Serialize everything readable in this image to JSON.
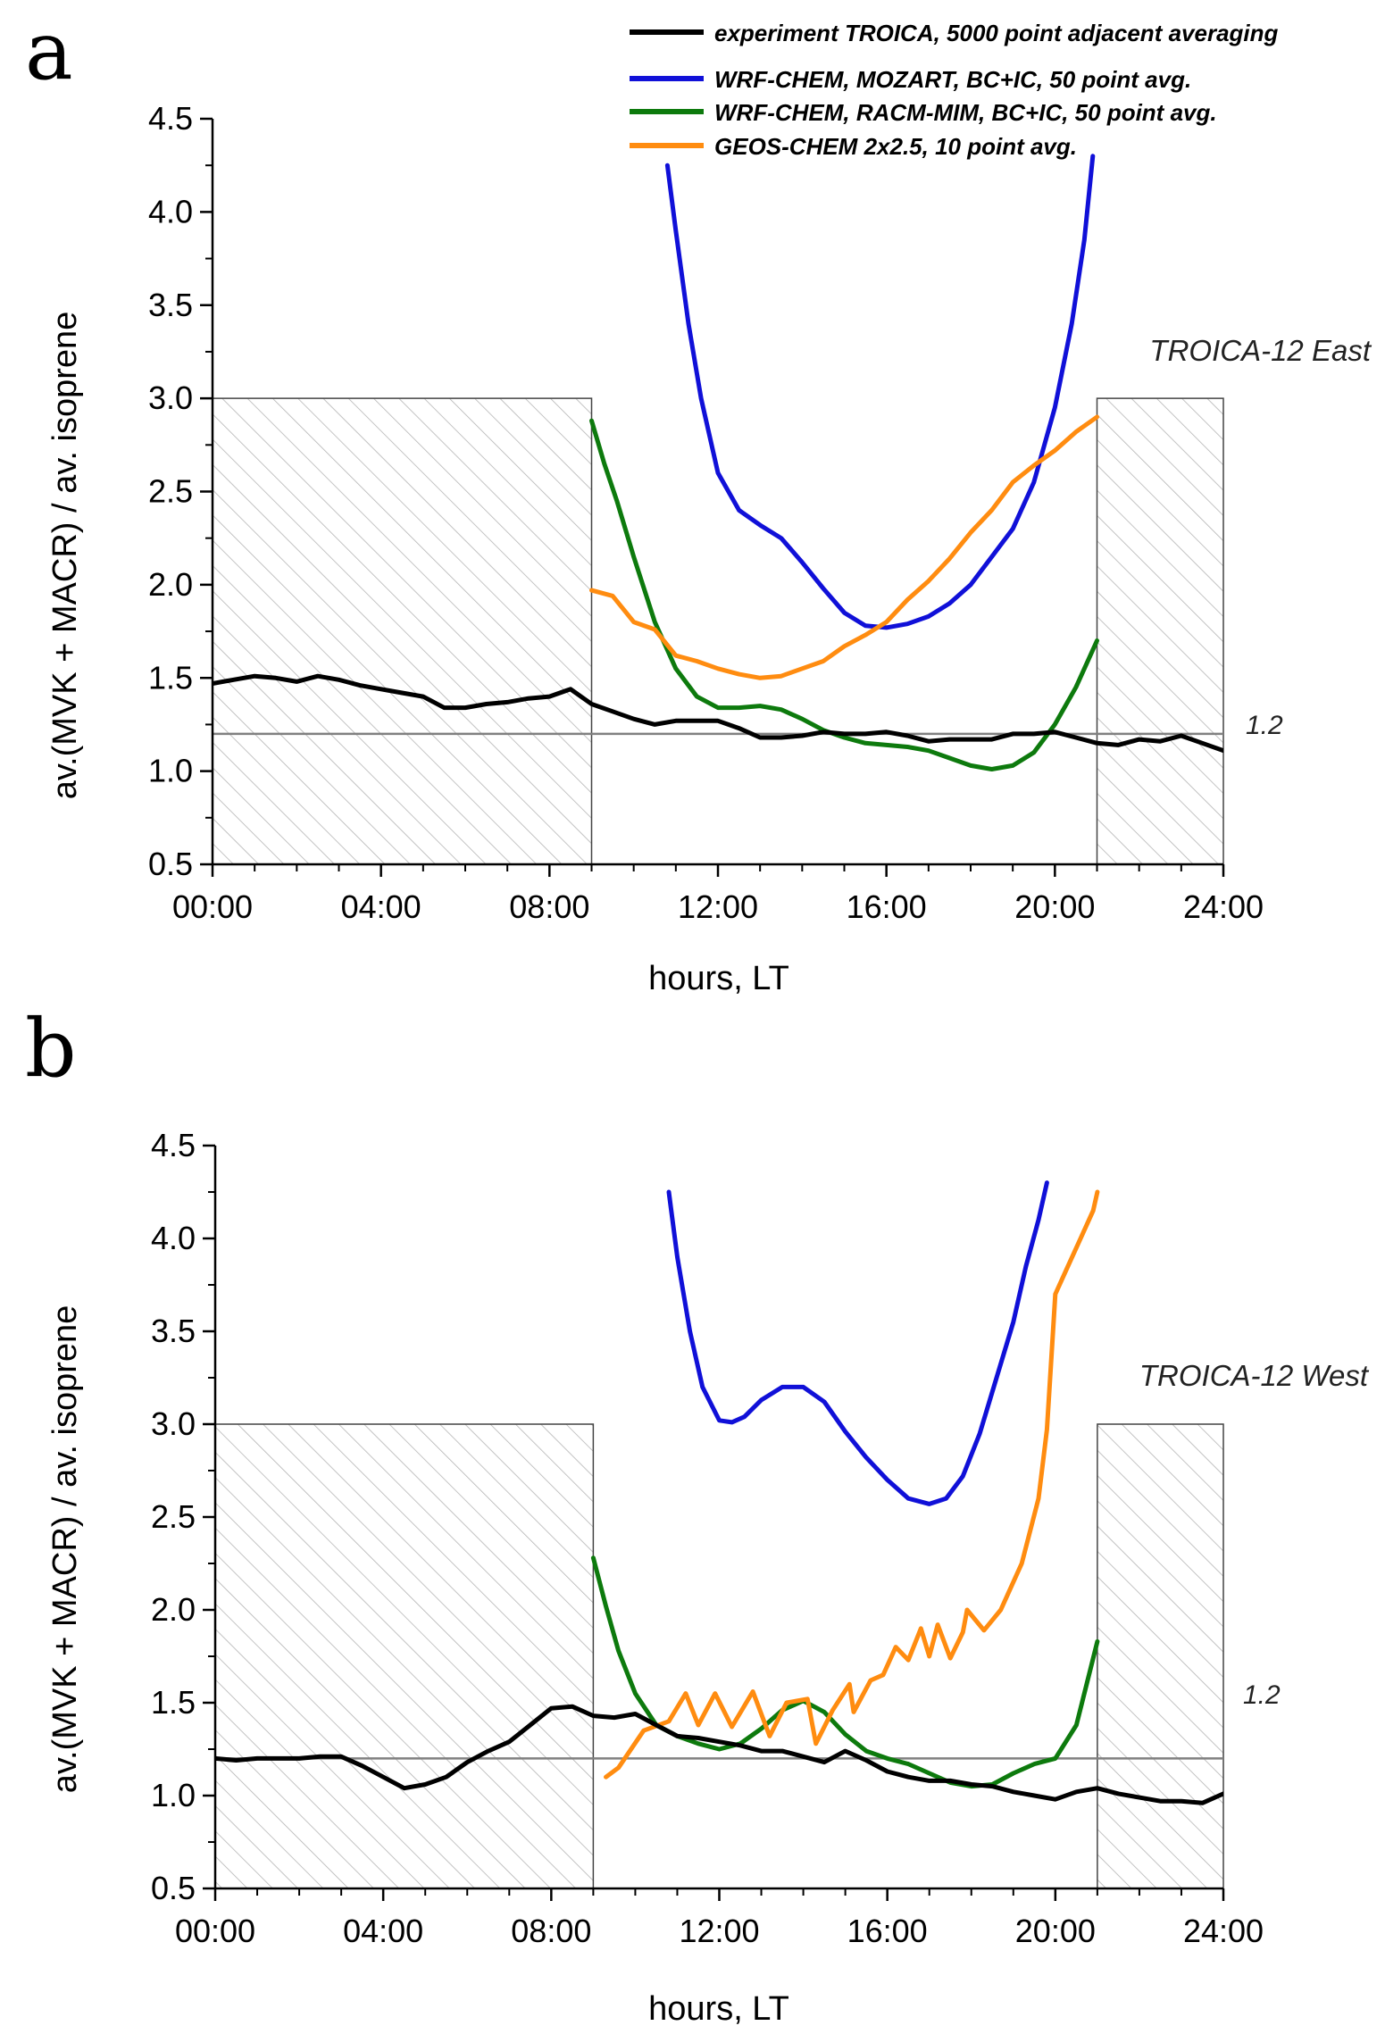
{
  "legend": [
    {
      "label": "experiment TROICA, 5000 point adjacent averaging",
      "color": "#000000"
    },
    {
      "label": "WRF-CHEM, MOZART, BC+IC, 50 point avg.",
      "color": "#1010d8"
    },
    {
      "label": "WRF-CHEM, RACM-MIM, BC+IC, 50 point  avg.",
      "color": "#0d7a0d"
    },
    {
      "label": "GEOS-CHEM 2x2.5, 10 point avg.",
      "color": "#ff8c10"
    }
  ],
  "chart_data": [
    {
      "type": "line",
      "panel_letter": "a",
      "annotation": "TROICA-12 East",
      "xlabel": "hours, LT",
      "ylabel": "av.(MVK + MACR) / av. isoprene",
      "xlim": [
        0,
        24
      ],
      "ylim": [
        0.5,
        4.5
      ],
      "x_ticks": [
        "00:00",
        "04:00",
        "08:00",
        "12:00",
        "16:00",
        "20:00",
        "24:00"
      ],
      "y_ticks": [
        "0.5",
        "1.0",
        "1.5",
        "2.0",
        "2.5",
        "3.0",
        "3.5",
        "4.0",
        "4.5"
      ],
      "reference_line": {
        "y": 1.2,
        "label": "1.2"
      },
      "shaded_regions": [
        {
          "x": [
            0,
            9
          ],
          "y": [
            0.5,
            3.0
          ]
        },
        {
          "x": [
            21,
            24
          ],
          "y": [
            0.5,
            3.0
          ]
        }
      ],
      "series": [
        {
          "name": "experiment TROICA, 5000 point adjacent averaging",
          "color": "#000000",
          "x": [
            0,
            0.5,
            1,
            1.5,
            2,
            2.5,
            3,
            3.5,
            4,
            4.5,
            5,
            5.5,
            6,
            6.5,
            7,
            7.5,
            8,
            8.5,
            9,
            9.5,
            10,
            10.5,
            11,
            11.5,
            12,
            12.5,
            13,
            13.5,
            14,
            14.5,
            15,
            15.5,
            16,
            16.5,
            17,
            17.5,
            18,
            18.5,
            19,
            19.5,
            20,
            20.5,
            21,
            21.5,
            22,
            22.5,
            23,
            23.5,
            24
          ],
          "y": [
            1.47,
            1.49,
            1.51,
            1.5,
            1.48,
            1.51,
            1.49,
            1.46,
            1.44,
            1.42,
            1.4,
            1.34,
            1.34,
            1.36,
            1.37,
            1.39,
            1.4,
            1.44,
            1.36,
            1.32,
            1.28,
            1.25,
            1.27,
            1.27,
            1.27,
            1.23,
            1.18,
            1.18,
            1.19,
            1.21,
            1.2,
            1.2,
            1.21,
            1.19,
            1.16,
            1.17,
            1.17,
            1.17,
            1.2,
            1.2,
            1.21,
            1.18,
            1.15,
            1.14,
            1.17,
            1.16,
            1.19,
            1.15,
            1.11
          ]
        },
        {
          "name": "WRF-CHEM, MOZART, BC+IC, 50 point avg.",
          "color": "#1010d8",
          "x": [
            10.8,
            11.0,
            11.3,
            11.6,
            12.0,
            12.5,
            13.0,
            13.5,
            14.0,
            14.5,
            15.0,
            15.5,
            16.0,
            16.5,
            17.0,
            17.5,
            18.0,
            18.5,
            19.0,
            19.5,
            20.0,
            20.4,
            20.7,
            20.9
          ],
          "y": [
            4.25,
            3.9,
            3.4,
            3.0,
            2.6,
            2.4,
            2.32,
            2.25,
            2.12,
            1.98,
            1.85,
            1.78,
            1.77,
            1.79,
            1.83,
            1.9,
            2.0,
            2.15,
            2.3,
            2.55,
            2.95,
            3.4,
            3.85,
            4.3
          ]
        },
        {
          "name": "WRF-CHEM, RACM-MIM, BC+IC, 50 point  avg.",
          "color": "#0d7a0d",
          "x": [
            9.0,
            9.3,
            9.6,
            10.0,
            10.5,
            11.0,
            11.5,
            12.0,
            12.5,
            13.0,
            13.5,
            14.0,
            14.5,
            15.0,
            15.5,
            16.0,
            16.5,
            17.0,
            17.5,
            18.0,
            18.5,
            19.0,
            19.5,
            20.0,
            20.5,
            21.0
          ],
          "y": [
            2.88,
            2.65,
            2.45,
            2.15,
            1.8,
            1.55,
            1.4,
            1.34,
            1.34,
            1.35,
            1.33,
            1.28,
            1.22,
            1.18,
            1.15,
            1.14,
            1.13,
            1.11,
            1.07,
            1.03,
            1.01,
            1.03,
            1.1,
            1.25,
            1.45,
            1.7
          ]
        },
        {
          "name": "GEOS-CHEM 2x2.5, 10 point avg.",
          "color": "#ff8c10",
          "x": [
            9.0,
            9.5,
            10.0,
            10.5,
            11.0,
            11.5,
            12.0,
            12.5,
            13.0,
            13.5,
            14.0,
            14.5,
            15.0,
            15.5,
            16.0,
            16.5,
            17.0,
            17.5,
            18.0,
            18.5,
            19.0,
            19.5,
            20.0,
            20.5,
            21.0
          ],
          "y": [
            1.97,
            1.94,
            1.8,
            1.76,
            1.62,
            1.59,
            1.55,
            1.52,
            1.5,
            1.51,
            1.55,
            1.59,
            1.67,
            1.73,
            1.8,
            1.92,
            2.02,
            2.14,
            2.28,
            2.4,
            2.55,
            2.64,
            2.72,
            2.82,
            2.9
          ]
        }
      ]
    },
    {
      "type": "line",
      "panel_letter": "b",
      "annotation": "TROICA-12 West",
      "xlabel": "hours, LT",
      "ylabel": "av.(MVK + MACR) / av. isoprene",
      "xlim": [
        0,
        24
      ],
      "ylim": [
        0.5,
        4.5
      ],
      "x_ticks": [
        "00:00",
        "04:00",
        "08:00",
        "12:00",
        "16:00",
        "20:00",
        "24:00"
      ],
      "y_ticks": [
        "0.5",
        "1.0",
        "1.5",
        "2.0",
        "2.5",
        "3.0",
        "3.5",
        "4.0",
        "4.5"
      ],
      "reference_line": {
        "y": 1.2,
        "label": "1.2"
      },
      "shaded_regions": [
        {
          "x": [
            0,
            9
          ],
          "y": [
            0.5,
            3.0
          ]
        },
        {
          "x": [
            21,
            24
          ],
          "y": [
            0.5,
            3.0
          ]
        }
      ],
      "series": [
        {
          "name": "experiment TROICA, 5000 point adjacent averaging",
          "color": "#000000",
          "x": [
            0,
            0.5,
            1,
            1.5,
            2,
            2.5,
            3,
            3.5,
            4,
            4.5,
            5,
            5.5,
            6,
            6.5,
            7,
            7.5,
            8,
            8.5,
            9,
            9.5,
            10,
            10.5,
            11,
            11.5,
            12,
            12.5,
            13,
            13.5,
            14,
            14.5,
            15,
            15.5,
            16,
            16.5,
            17,
            17.5,
            18,
            18.5,
            19,
            19.5,
            20,
            20.5,
            21,
            21.5,
            22,
            22.5,
            23,
            23.5,
            24
          ],
          "y": [
            1.2,
            1.19,
            1.2,
            1.2,
            1.2,
            1.21,
            1.21,
            1.16,
            1.1,
            1.04,
            1.06,
            1.1,
            1.18,
            1.24,
            1.29,
            1.38,
            1.47,
            1.48,
            1.43,
            1.42,
            1.44,
            1.38,
            1.32,
            1.31,
            1.29,
            1.27,
            1.24,
            1.24,
            1.21,
            1.18,
            1.24,
            1.19,
            1.13,
            1.1,
            1.08,
            1.08,
            1.06,
            1.05,
            1.02,
            1.0,
            0.98,
            1.02,
            1.04,
            1.01,
            0.99,
            0.97,
            0.97,
            0.96,
            1.01
          ]
        },
        {
          "name": "WRF-CHEM, MOZART, BC+IC, 50 point avg.",
          "color": "#1010d8",
          "x": [
            10.8,
            11.0,
            11.3,
            11.6,
            12.0,
            12.3,
            12.6,
            13.0,
            13.5,
            14.0,
            14.5,
            15.0,
            15.5,
            16.0,
            16.5,
            17.0,
            17.4,
            17.8,
            18.2,
            18.6,
            19.0,
            19.3,
            19.6,
            19.8
          ],
          "y": [
            4.25,
            3.9,
            3.5,
            3.2,
            3.02,
            3.01,
            3.04,
            3.13,
            3.2,
            3.2,
            3.12,
            2.96,
            2.82,
            2.7,
            2.6,
            2.57,
            2.6,
            2.72,
            2.95,
            3.25,
            3.55,
            3.85,
            4.1,
            4.3
          ]
        },
        {
          "name": "WRF-CHEM, RACM-MIM, BC+IC, 50 point  avg.",
          "color": "#0d7a0d",
          "x": [
            9.0,
            9.3,
            9.6,
            10.0,
            10.5,
            11.0,
            11.5,
            12.0,
            12.5,
            13.0,
            13.5,
            14.0,
            14.5,
            15.0,
            15.5,
            16.0,
            16.5,
            17.0,
            17.5,
            18.0,
            18.5,
            19.0,
            19.5,
            20.0,
            20.5,
            21.0
          ],
          "y": [
            2.28,
            2.02,
            1.78,
            1.55,
            1.38,
            1.32,
            1.28,
            1.25,
            1.28,
            1.36,
            1.46,
            1.51,
            1.45,
            1.33,
            1.24,
            1.2,
            1.17,
            1.12,
            1.07,
            1.05,
            1.06,
            1.12,
            1.17,
            1.2,
            1.38,
            1.83
          ]
        },
        {
          "name": "GEOS-CHEM 2x2.5, 10 point avg.",
          "color": "#ff8c10",
          "x": [
            9.3,
            9.6,
            10.2,
            10.8,
            11.2,
            11.5,
            11.9,
            12.3,
            12.8,
            13.2,
            13.6,
            14.1,
            14.3,
            14.7,
            15.1,
            15.2,
            15.6,
            15.9,
            16.2,
            16.5,
            16.8,
            17.0,
            17.2,
            17.5,
            17.8,
            17.9,
            18.3,
            18.7,
            19.2,
            19.6,
            19.8,
            20.0,
            20.3,
            20.6,
            20.9,
            21.0
          ],
          "y": [
            1.1,
            1.15,
            1.35,
            1.4,
            1.55,
            1.38,
            1.55,
            1.37,
            1.56,
            1.32,
            1.5,
            1.52,
            1.28,
            1.46,
            1.6,
            1.45,
            1.62,
            1.65,
            1.8,
            1.73,
            1.9,
            1.75,
            1.92,
            1.74,
            1.88,
            2.0,
            1.89,
            2.0,
            2.25,
            2.6,
            2.97,
            3.7,
            3.85,
            4.0,
            4.15,
            4.25
          ]
        }
      ]
    }
  ]
}
